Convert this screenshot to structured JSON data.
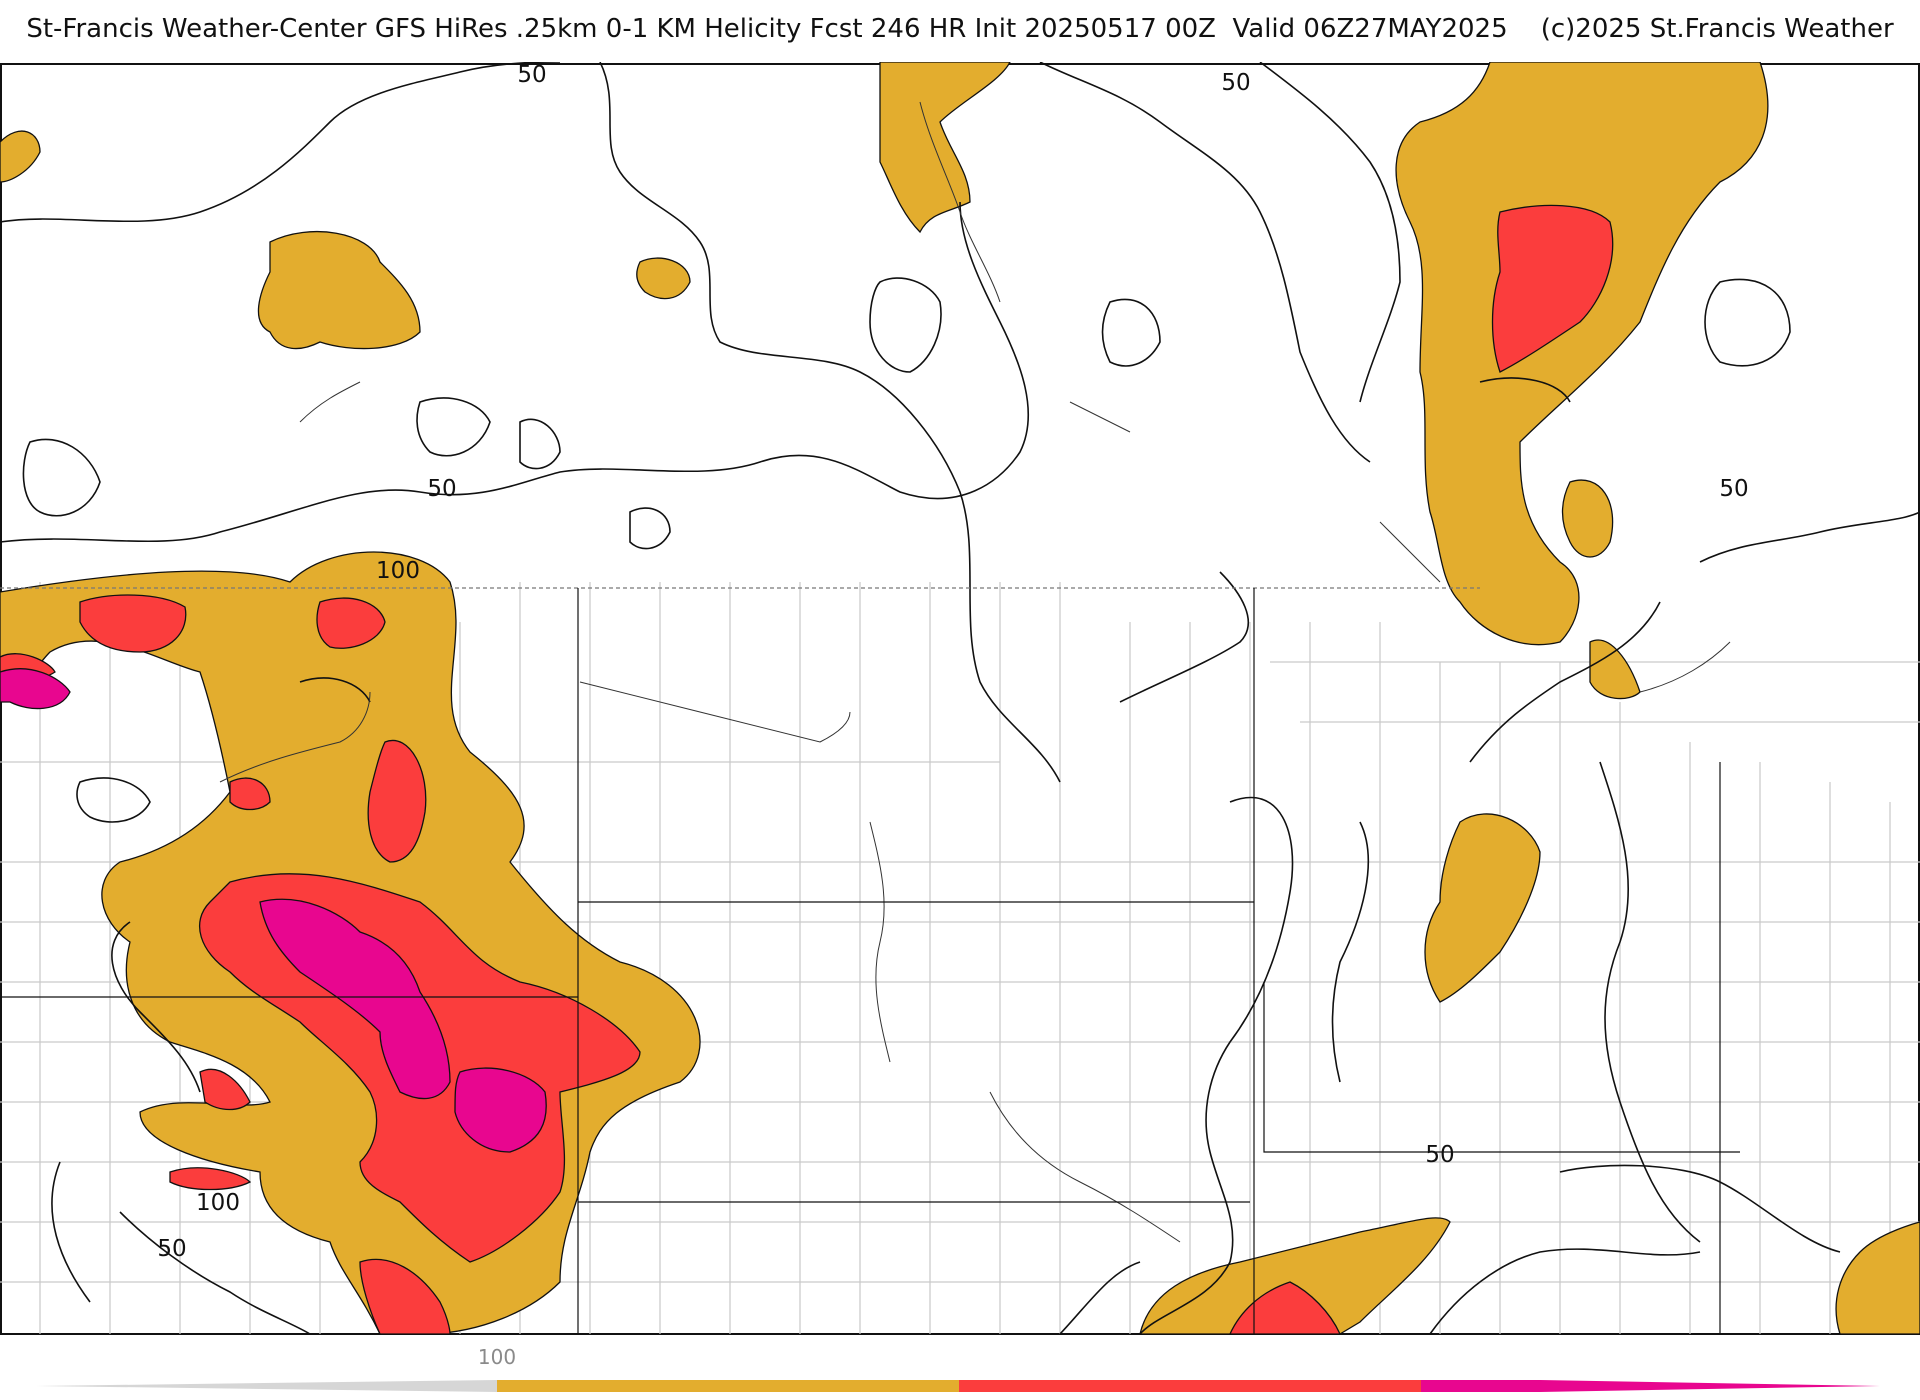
{
  "title": "St-Francis Weather-Center GFS HiRes .25km 0-1 KM Helicity Fcst 246 HR Init 20250517 00Z  Valid 06Z27MAY2025    (c)2025 St.Francis Weather",
  "map": {
    "field": "0-1 KM Helicity",
    "contour_labels": [
      "50",
      "50",
      "50",
      "50",
      "100",
      "100",
      "50",
      "50"
    ]
  },
  "colorbar": {
    "label": "100",
    "colors": {
      "band1": "#e3ad2e",
      "band2": "#fb3d3d",
      "band3": "#e8068f",
      "tail": "#c8c8c8"
    }
  },
  "colors": {
    "orange": "#e3ad2e",
    "red": "#fb3d3d",
    "magenta": "#e8068f",
    "contour": "#111111",
    "county": "#c8c8c8"
  }
}
